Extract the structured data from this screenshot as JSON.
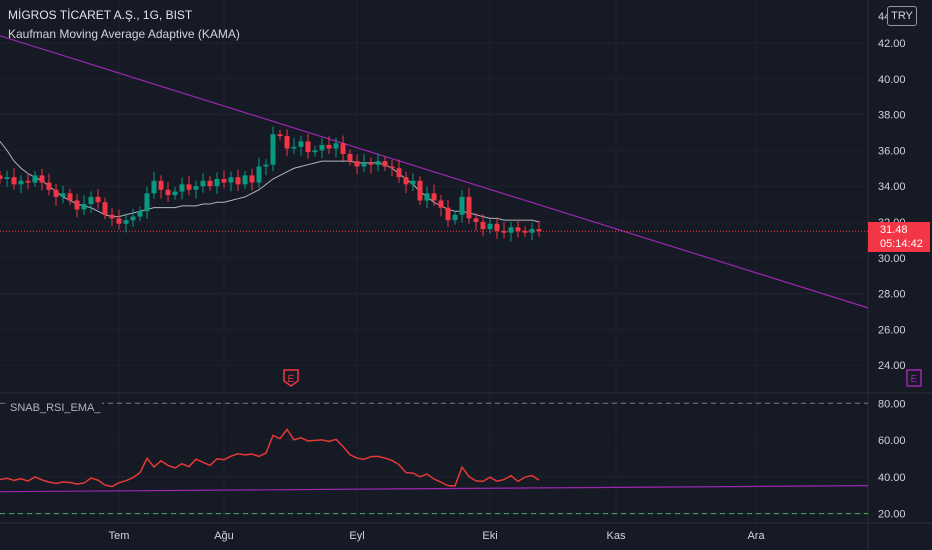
{
  "header": {
    "title": "MİGROS TİCARET A.Ş., 1G, BIST",
    "subtitle": "Kaufman Moving Average Adaptive (KAMA)",
    "currency_button": "TRY"
  },
  "price_label": {
    "price": "31.48",
    "countdown": "05:14:42"
  },
  "indicator": {
    "label": "SNAB_RSI_EMA_"
  },
  "colors": {
    "up": "#089981",
    "down": "#f23645",
    "kama": "#b2b5be",
    "trend": "#9c27b0",
    "rsi": "#e53935",
    "ref": "#4caf50"
  },
  "events": [
    {
      "type": "earnings",
      "label": "E",
      "x_day": 42
    },
    {
      "type": "earnings",
      "label": "E",
      "x_day": 131
    }
  ],
  "chart_data": [
    {
      "type": "candlestick",
      "y_ticks": [
        "42.00",
        "40.00",
        "38.00",
        "36.00",
        "34.00",
        "32.00",
        "30.00",
        "28.00",
        "26.00",
        "24.00"
      ],
      "top_tick_partial": "44",
      "x_ticks": [
        {
          "label": "Tem",
          "day": 17
        },
        {
          "label": "Ağu",
          "day": 32
        },
        {
          "label": "Eyl",
          "day": 51
        },
        {
          "label": "Eki",
          "day": 70
        },
        {
          "label": "Kas",
          "day": 88
        },
        {
          "label": "Ara",
          "day": 108
        }
      ],
      "ylim": [
        22.5,
        44.4
      ],
      "xlim": [
        0,
        124
      ],
      "last_price": 31.48,
      "close": [
        34.4,
        34.5,
        34.1,
        34.3,
        34.2,
        34.6,
        34.2,
        33.8,
        33.4,
        33.6,
        33.2,
        32.7,
        33.0,
        33.4,
        33.1,
        32.4,
        32.2,
        31.9,
        32.1,
        32.3,
        32.6,
        33.6,
        34.3,
        33.8,
        33.5,
        33.7,
        34.1,
        33.8,
        34.0,
        34.3,
        34.0,
        34.4,
        34.2,
        34.5,
        34.1,
        34.6,
        34.2,
        35.1,
        35.2,
        36.9,
        36.8,
        36.1,
        36.2,
        36.5,
        35.9,
        36.0,
        36.3,
        36.1,
        36.4,
        35.8,
        35.4,
        35.1,
        35.3,
        35.2,
        35.4,
        35.1,
        35.0,
        34.5,
        34.1,
        34.3,
        33.2,
        33.6,
        33.2,
        32.8,
        32.1,
        32.4,
        33.4,
        32.2,
        32.0,
        31.6,
        31.9,
        31.5,
        31.4,
        31.7,
        31.5,
        31.4,
        31.6,
        31.48
      ],
      "kama": [
        36.5,
        36.0,
        35.4,
        35.0,
        34.7,
        34.5,
        34.3,
        34.0,
        33.7,
        33.4,
        33.2,
        33.0,
        32.9,
        32.8,
        32.6,
        32.4,
        32.3,
        32.3,
        32.4,
        32.5,
        32.6,
        32.7,
        32.8,
        32.8,
        32.8,
        32.8,
        32.9,
        32.9,
        32.9,
        33.0,
        33.0,
        33.1,
        33.1,
        33.2,
        33.3,
        33.4,
        33.6,
        33.8,
        34.1,
        34.4,
        34.6,
        34.8,
        35.0,
        35.1,
        35.2,
        35.3,
        35.4,
        35.4,
        35.4,
        35.4,
        35.4,
        35.3,
        35.3,
        35.3,
        35.3,
        35.2,
        35.0,
        34.7,
        34.4,
        34.1,
        33.7,
        33.4,
        33.1,
        32.9,
        32.7,
        32.6,
        32.6,
        32.5,
        32.4,
        32.3,
        32.2,
        32.2,
        32.1,
        32.1,
        32.1,
        32.1,
        32.1,
        32.0
      ],
      "trendline": {
        "from": [
          0,
          42.4
        ],
        "to": [
          124,
          27.2
        ]
      },
      "series": [
        {
          "values": []
        }
      ]
    },
    {
      "type": "line",
      "y_ticks": [
        "80.00",
        "60.00",
        "40.00",
        "20.00"
      ],
      "ylim": [
        16.5,
        84.5
      ],
      "levels": [
        80,
        20
      ],
      "rsi": [
        38.5,
        39.2,
        38.1,
        38.9,
        37.7,
        39.9,
        38.3,
        37.1,
        36.4,
        37.2,
        36.9,
        36.1,
        36.6,
        39.3,
        38.2,
        35.5,
        34.7,
        36.8,
        37.9,
        39.5,
        42.3,
        50.1,
        45.3,
        48.7,
        46.2,
        44.8,
        47.1,
        45.5,
        49.6,
        47.9,
        46.2,
        49.8,
        49.3,
        51.2,
        52.6,
        51.9,
        52.4,
        51.1,
        53.0,
        62.5,
        60.8,
        65.8,
        60.1,
        61.3,
        59.5,
        59.8,
        60.1,
        59.2,
        60.4,
        56.5,
        52.0,
        50.2,
        49.5,
        51.0,
        51.1,
        50.2,
        48.9,
        46.6,
        42.3,
        42.0,
        40.0,
        41.5,
        38.8,
        37.1,
        35.2,
        35.0,
        45.3,
        40.1,
        37.8,
        37.5,
        39.8,
        37.6,
        38.5,
        40.6,
        37.5,
        39.8,
        40.7,
        38.2
      ],
      "trendline": {
        "from": [
          0,
          31.9
        ],
        "to": [
          124,
          35.2
        ]
      },
      "series": [
        {
          "values": []
        }
      ]
    }
  ]
}
